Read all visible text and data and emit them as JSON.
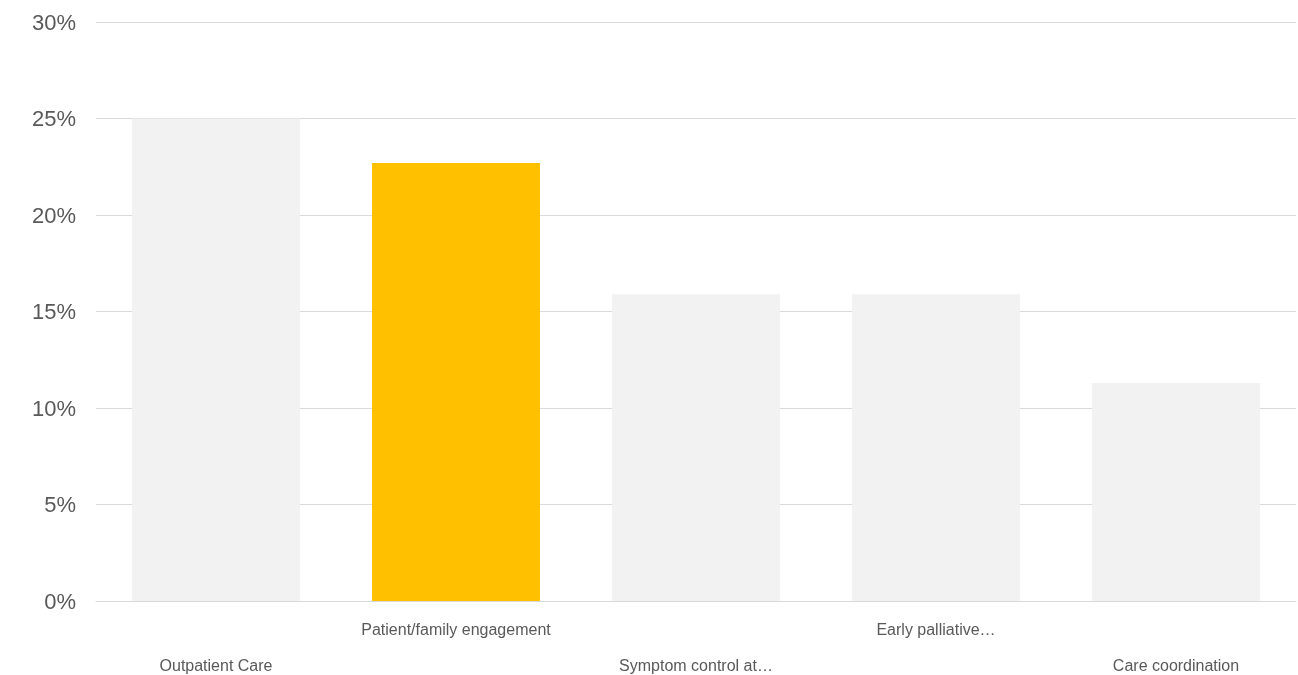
{
  "chart_data": {
    "type": "bar",
    "categories": [
      "Outpatient Care",
      "Patient/family engagement",
      "Symptom control at…",
      "Early palliative…",
      "Care coordination"
    ],
    "values": [
      25,
      22.7,
      15.9,
      15.9,
      11.3
    ],
    "colors": [
      "#f2f2f2",
      "#ffc000",
      "#f2f2f2",
      "#f2f2f2",
      "#f2f2f2"
    ],
    "ylim": [
      0,
      30
    ],
    "yticks": [
      {
        "value": 0,
        "label": "0%"
      },
      {
        "value": 5,
        "label": "5%"
      },
      {
        "value": 10,
        "label": "10%"
      },
      {
        "value": 15,
        "label": "15%"
      },
      {
        "value": 20,
        "label": "20%"
      },
      {
        "value": 25,
        "label": "25%"
      },
      {
        "value": 30,
        "label": "30%"
      }
    ],
    "grid": "y"
  }
}
